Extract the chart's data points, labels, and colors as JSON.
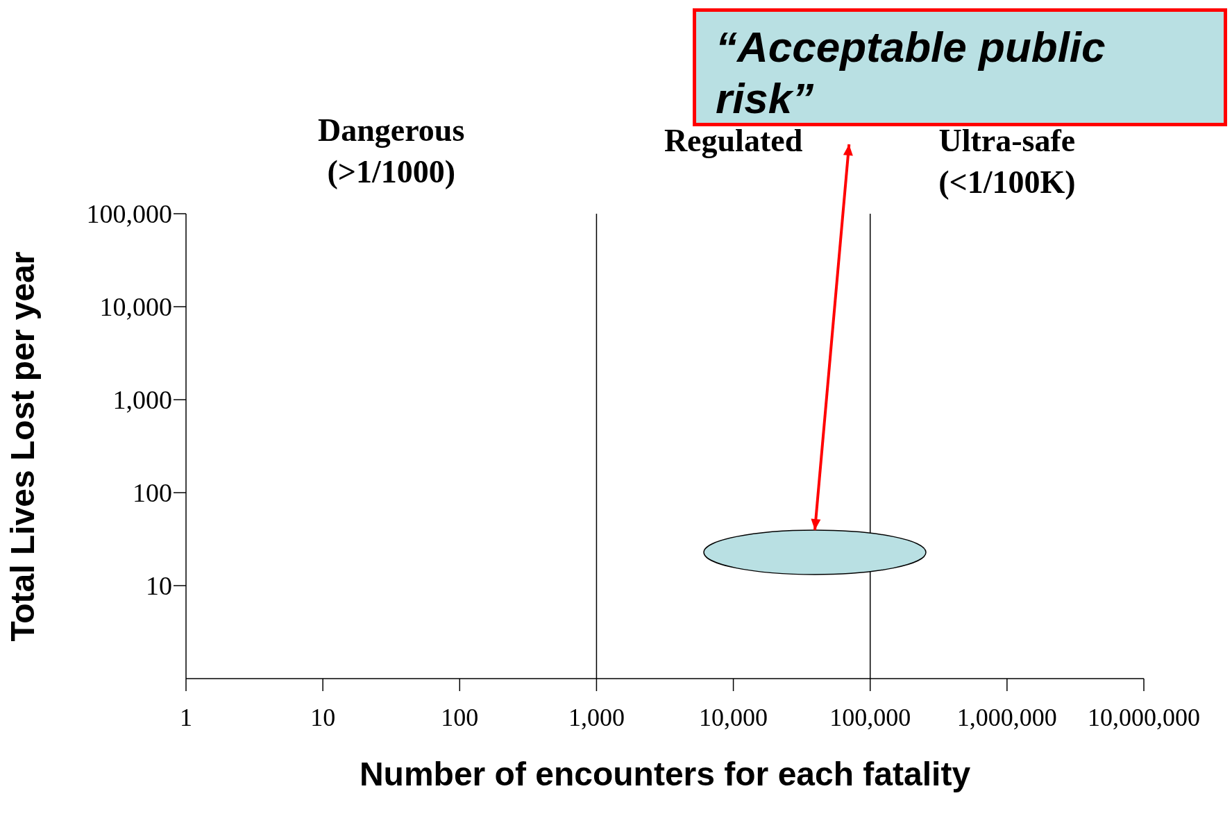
{
  "chart_data": {
    "type": "scatter",
    "xlabel": "Number of encounters for each fatality",
    "ylabel": "Total Lives Lost per year",
    "log": "xy",
    "grid": false,
    "xlim": [
      1,
      10000000
    ],
    "xticks": [
      {
        "value": 1,
        "label": "1"
      },
      {
        "value": 10,
        "label": "10"
      },
      {
        "value": 100,
        "label": "100"
      },
      {
        "value": 1000,
        "label": "1,000"
      },
      {
        "value": 10000,
        "label": "10,000"
      },
      {
        "value": 100000,
        "label": "100,000"
      },
      {
        "value": 1000000,
        "label": "1,000,000"
      },
      {
        "value": 10000000,
        "label": "10,000,000"
      }
    ],
    "ylim": [
      1,
      100000
    ],
    "yticks": [
      {
        "value": 10,
        "label": "10"
      },
      {
        "value": 100,
        "label": "100"
      },
      {
        "value": 1000,
        "label": "1,000"
      },
      {
        "value": 10000,
        "label": "10,000"
      },
      {
        "value": 100000,
        "label": "100,000"
      }
    ],
    "ref_lines": [
      {
        "axis": "x",
        "value": 1000,
        "color": "#000000"
      },
      {
        "axis": "x",
        "value": 100000,
        "color": "#000000"
      }
    ],
    "annotations": [
      "Dangerous\n(>1/1000)",
      "Regulated",
      "Ultra-safe\n(<1/100K)",
      "“Acceptable public risk”"
    ]
  }
}
